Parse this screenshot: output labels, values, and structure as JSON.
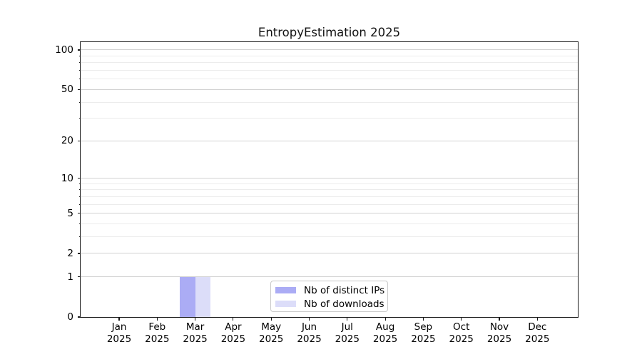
{
  "chart_data": {
    "type": "bar",
    "title": "EntropyEstimation 2025",
    "categories": [
      "Jan",
      "Feb",
      "Mar",
      "Apr",
      "May",
      "Jun",
      "Jul",
      "Aug",
      "Sep",
      "Oct",
      "Nov",
      "Dec"
    ],
    "year_label": "2025",
    "series": [
      {
        "name": "Nb of distinct IPs",
        "color": "#abacf5",
        "values": [
          0,
          0,
          1,
          0,
          0,
          0,
          0,
          0,
          0,
          0,
          0,
          0
        ]
      },
      {
        "name": "Nb of downloads",
        "color": "#dcddf9",
        "values": [
          0,
          0,
          1,
          0,
          0,
          0,
          0,
          0,
          0,
          0,
          0,
          0
        ]
      }
    ],
    "xlabel": "",
    "ylabel": "",
    "y_axis": {
      "scale": "log1p",
      "major_ticks": [
        0,
        1,
        2,
        5,
        10,
        20,
        50,
        100
      ],
      "minor_gridlines": [
        3,
        4,
        6,
        7,
        8,
        9,
        30,
        40,
        60,
        70,
        80,
        90
      ],
      "ymax": 114.6
    },
    "grid": "horizontal major+minor",
    "legend_position": "lower center",
    "colors": {
      "major_grid": "#d2d2d2",
      "minor_grid": "#ececec",
      "spine": "#1a1a1a",
      "text": "#000000"
    }
  }
}
